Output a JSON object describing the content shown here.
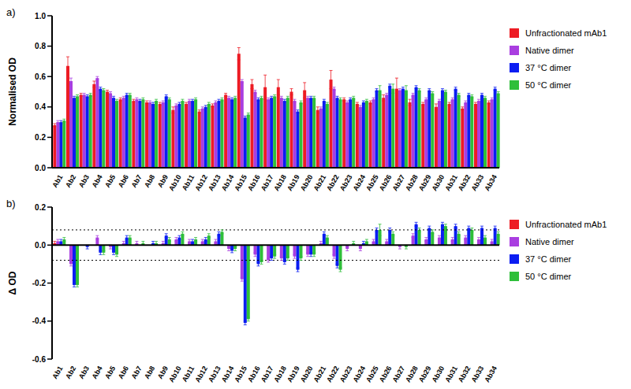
{
  "chart_data": [
    {
      "type": "bar",
      "title": "a)",
      "y_label": "Normalised OD",
      "legend": "right",
      "grid": false,
      "categories": [
        "Ab1",
        "Ab2",
        "Ab3",
        "Ab4",
        "Ab5",
        "Ab6",
        "Ab7",
        "Ab8",
        "Ab9",
        "Ab10",
        "Ab11",
        "Ab12",
        "Ab13",
        "Ab14",
        "Ab15",
        "Ab16",
        "Ab17",
        "Ab18",
        "Ab19",
        "Ab20",
        "Ab21",
        "Ab22",
        "Ab23",
        "Ab24",
        "Ab25",
        "Ab26",
        "Ab27",
        "Ab28",
        "Ab29",
        "Ab30",
        "Ab31",
        "Ab32",
        "Ab33",
        "Ab34"
      ],
      "ylim": [
        0,
        1
      ],
      "yticks": [
        {
          "value": 0,
          "label": "0.0"
        },
        0.2,
        0.4,
        0.6,
        0.8,
        {
          "value": 1,
          "label": "1.0"
        }
      ],
      "series": [
        {
          "name": "Unfractionated mAb1",
          "color": "#ed1c24",
          "values": [
            0.28,
            0.67,
            0.48,
            0.55,
            0.5,
            0.45,
            0.44,
            0.43,
            0.42,
            0.38,
            0.42,
            0.37,
            0.41,
            0.48,
            0.75,
            0.55,
            0.53,
            0.53,
            0.5,
            0.51,
            0.38,
            0.58,
            0.45,
            0.42,
            0.43,
            0.46,
            0.52,
            0.43,
            0.42,
            0.4,
            0.42,
            0.39,
            0.42,
            0.43
          ],
          "errors": [
            0.01,
            0.06,
            0.01,
            0.02,
            0.01,
            0.01,
            0.01,
            0.01,
            0.01,
            0.02,
            0.01,
            0.01,
            0.01,
            0.01,
            0.04,
            0.03,
            0.08,
            0.05,
            0.02,
            0.05,
            0.02,
            0.06,
            0.01,
            0.01,
            0.01,
            0.02,
            0.07,
            0.02,
            0.01,
            0.02,
            0.01,
            0.01,
            0.01,
            0.01
          ]
        },
        {
          "name": "Native dimer",
          "color": "#a93ee0",
          "values": [
            0.3,
            0.57,
            0.48,
            0.59,
            0.49,
            0.46,
            0.45,
            0.43,
            0.43,
            0.41,
            0.44,
            0.39,
            0.43,
            0.46,
            0.57,
            0.5,
            0.45,
            0.46,
            0.44,
            0.46,
            0.39,
            0.52,
            0.43,
            0.4,
            0.45,
            0.48,
            0.51,
            0.48,
            0.45,
            0.44,
            0.45,
            0.43,
            0.44,
            0.45
          ],
          "errors": [
            0.01,
            0.02,
            0.01,
            0.01,
            0.01,
            0.01,
            0.01,
            0.01,
            0.01,
            0.01,
            0.01,
            0.01,
            0.01,
            0.01,
            0.01,
            0.01,
            0.01,
            0.01,
            0.01,
            0.01,
            0.01,
            0.01,
            0.01,
            0.01,
            0.01,
            0.01,
            0.01,
            0.01,
            0.01,
            0.01,
            0.01,
            0.01,
            0.01,
            0.01
          ]
        },
        {
          "name": "37 °C dimer",
          "color": "#0b1df2",
          "values": [
            0.3,
            0.46,
            0.47,
            0.52,
            0.46,
            0.48,
            0.44,
            0.42,
            0.47,
            0.42,
            0.44,
            0.4,
            0.44,
            0.45,
            0.33,
            0.45,
            0.46,
            0.44,
            0.37,
            0.46,
            0.44,
            0.46,
            0.45,
            0.43,
            0.51,
            0.54,
            0.52,
            0.53,
            0.51,
            0.51,
            0.52,
            0.48,
            0.48,
            0.52
          ],
          "errors": [
            0.01,
            0.01,
            0.01,
            0.01,
            0.01,
            0.01,
            0.01,
            0.01,
            0.01,
            0.01,
            0.01,
            0.01,
            0.01,
            0.01,
            0.01,
            0.01,
            0.01,
            0.01,
            0.01,
            0.01,
            0.01,
            0.01,
            0.01,
            0.01,
            0.01,
            0.01,
            0.01,
            0.01,
            0.01,
            0.01,
            0.01,
            0.01,
            0.01,
            0.01
          ]
        },
        {
          "name": "50 °C dimer",
          "color": "#2fbf3a",
          "values": [
            0.31,
            0.47,
            0.48,
            0.51,
            0.44,
            0.48,
            0.45,
            0.44,
            0.45,
            0.44,
            0.45,
            0.42,
            0.45,
            0.46,
            0.35,
            0.46,
            0.47,
            0.46,
            0.43,
            0.46,
            0.42,
            0.45,
            0.46,
            0.44,
            0.51,
            0.52,
            0.51,
            0.51,
            0.49,
            0.5,
            0.48,
            0.47,
            0.46,
            0.49
          ],
          "errors": [
            0.01,
            0.01,
            0.01,
            0.01,
            0.01,
            0.01,
            0.01,
            0.01,
            0.01,
            0.01,
            0.01,
            0.01,
            0.01,
            0.01,
            0.01,
            0.01,
            0.01,
            0.01,
            0.01,
            0.01,
            0.01,
            0.01,
            0.01,
            0.01,
            0.03,
            0.03,
            0.03,
            0.01,
            0.01,
            0.01,
            0.01,
            0.01,
            0.01,
            0.01
          ]
        }
      ]
    },
    {
      "type": "bar",
      "title": "b)",
      "y_label": "Δ OD",
      "legend": "right",
      "grid": false,
      "categories": [
        "Ab1",
        "Ab2",
        "Ab3",
        "Ab4",
        "Ab5",
        "Ab6",
        "Ab7",
        "Ab8",
        "Ab9",
        "Ab10",
        "Ab11",
        "Ab12",
        "Ab13",
        "Ab14",
        "Ab15",
        "Ab16",
        "Ab17",
        "Ab18",
        "Ab19",
        "Ab20",
        "Ab21",
        "Ab22",
        "Ab23",
        "Ab24",
        "Ab25",
        "Ab26",
        "Ab27",
        "Ab28",
        "Ab29",
        "Ab30",
        "Ab31",
        "Ab32",
        "Ab33",
        "Ab34"
      ],
      "ylim": [
        -0.6,
        0.2
      ],
      "yticks": [
        -0.6,
        -0.4,
        -0.2,
        {
          "value": 0,
          "label": "0.0"
        },
        0.2
      ],
      "reference_lines": [
        -0.08,
        0.08
      ],
      "series": [
        {
          "name": "Unfractionated mAb1",
          "color": "#ed1c24",
          "values": [
            0.01,
            0,
            0,
            0,
            0,
            0,
            0,
            0,
            0,
            0,
            0,
            0,
            0,
            0,
            0,
            0,
            0,
            0,
            0,
            0,
            0,
            0,
            0,
            0,
            0,
            0,
            0,
            0,
            0,
            0,
            0,
            0,
            0,
            0
          ],
          "errors": [
            0.01,
            0.06,
            0.01,
            0.01,
            0.01,
            0.01,
            0.01,
            0.01,
            0.01,
            0.01,
            0.01,
            0.01,
            0.01,
            0.01,
            0.01,
            0.02,
            0.08,
            0.05,
            0.01,
            0.06,
            0.01,
            0.04,
            0.01,
            0.01,
            0.01,
            0.01,
            0.07,
            0.01,
            0.01,
            0.01,
            0.01,
            0.01,
            0.01,
            0.01
          ]
        },
        {
          "name": "Native dimer",
          "color": "#a93ee0",
          "values": [
            0.02,
            -0.1,
            0,
            0.04,
            -0.01,
            0.01,
            0.01,
            0,
            0.01,
            0.03,
            0.02,
            0.02,
            0.02,
            -0.02,
            -0.18,
            -0.05,
            -0.08,
            -0.07,
            -0.06,
            -0.05,
            0.01,
            -0.06,
            -0.02,
            -0.02,
            0.02,
            0.02,
            -0.01,
            0.05,
            0.03,
            0.04,
            0.03,
            0.04,
            0.03,
            0.02
          ],
          "errors": [
            0.01,
            0.01,
            0.01,
            0.01,
            0.01,
            0.01,
            0.01,
            0.01,
            0.01,
            0.01,
            0.01,
            0.01,
            0.01,
            0.01,
            0.01,
            0.01,
            0.01,
            0.01,
            0.01,
            0.01,
            0.01,
            0.01,
            0.01,
            0.01,
            0.01,
            0.01,
            0.01,
            0.01,
            0.01,
            0.01,
            0.01,
            0.01,
            0.01,
            0.01
          ]
        },
        {
          "name": "37 °C dimer",
          "color": "#0b1df2",
          "values": [
            0.02,
            -0.21,
            -0.01,
            -0.04,
            -0.04,
            0.04,
            0,
            0.01,
            0.05,
            0.04,
            0.02,
            0.03,
            0.06,
            -0.03,
            -0.41,
            -0.1,
            -0.07,
            -0.09,
            -0.13,
            -0.05,
            0.06,
            -0.11,
            0,
            0.01,
            0.08,
            0.08,
            0,
            0.11,
            0.09,
            0.11,
            0.1,
            0.09,
            0.09,
            0.09
          ],
          "errors": [
            0.01,
            0.01,
            0.01,
            0.01,
            0.01,
            0.01,
            0.01,
            0.01,
            0.01,
            0.01,
            0.01,
            0.01,
            0.01,
            0.01,
            0.01,
            0.01,
            0.01,
            0.01,
            0.01,
            0.01,
            0.01,
            0.01,
            0.01,
            0.01,
            0.01,
            0.01,
            0.01,
            0.01,
            0.01,
            0.01,
            0.01,
            0.01,
            0.01,
            0.01
          ]
        },
        {
          "name": "50 °C dimer",
          "color": "#2fbf3a",
          "values": [
            0.03,
            -0.21,
            0,
            -0.04,
            -0.05,
            0.04,
            0.01,
            0.01,
            0.03,
            0.06,
            0.03,
            0.05,
            0.07,
            -0.02,
            -0.39,
            -0.09,
            -0.06,
            -0.07,
            -0.07,
            -0.05,
            0.04,
            -0.13,
            0.01,
            0.02,
            0.08,
            0.06,
            -0.01,
            0.08,
            0.07,
            0.1,
            0.06,
            0.08,
            0.04,
            0.06
          ],
          "errors": [
            0.01,
            0.01,
            0.01,
            0.01,
            0.01,
            0.01,
            0.01,
            0.01,
            0.01,
            0.01,
            0.01,
            0.01,
            0.01,
            0.01,
            0.01,
            0.01,
            0.01,
            0.01,
            0.01,
            0.01,
            0.01,
            0.01,
            0.01,
            0.01,
            0.03,
            0.01,
            0.01,
            0.01,
            0.01,
            0.01,
            0.01,
            0.01,
            0.01,
            0.01
          ]
        }
      ]
    }
  ]
}
